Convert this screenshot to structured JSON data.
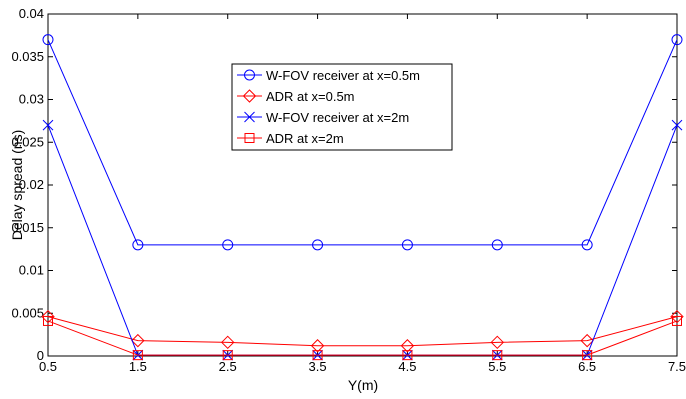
{
  "chart_data": {
    "type": "line",
    "xlabel": "Y(m)",
    "ylabel": "Delay spread (ns)",
    "xlim": [
      0.5,
      7.5
    ],
    "ylim": [
      0,
      0.04
    ],
    "x": [
      0.5,
      1.5,
      2.5,
      3.5,
      4.5,
      5.5,
      6.5,
      7.5
    ],
    "xticks": [
      "0.5",
      "1.5",
      "2.5",
      "3.5",
      "4.5",
      "5.5",
      "6.5",
      "7.5"
    ],
    "yticks": [
      "0",
      "0.005",
      "0.01",
      "0.015",
      "0.02",
      "0.025",
      "0.03",
      "0.035",
      "0.04"
    ],
    "ytick_values": [
      0,
      0.005,
      0.01,
      0.015,
      0.02,
      0.025,
      0.03,
      0.035,
      0.04
    ],
    "grid": false,
    "legend_position": "top-center",
    "series": [
      {
        "name": "W-FOV receiver at x=0.5m",
        "color": "#0000ff",
        "marker": "circle",
        "values": [
          0.037,
          0.013,
          0.013,
          0.013,
          0.013,
          0.013,
          0.013,
          0.037
        ]
      },
      {
        "name": "ADR at x=0.5m",
        "color": "#ff0000",
        "marker": "diamond",
        "values": [
          0.0046,
          0.0018,
          0.0016,
          0.0012,
          0.0012,
          0.0016,
          0.0018,
          0.0046
        ]
      },
      {
        "name": "W-FOV receiver at x=2m",
        "color": "#0000ff",
        "marker": "x",
        "values": [
          0.027,
          0.0001,
          0.0001,
          0.0001,
          0.0001,
          0.0001,
          0.0001,
          0.027
        ]
      },
      {
        "name": "ADR at x=2m",
        "color": "#ff0000",
        "marker": "square",
        "values": [
          0.0041,
          0.0001,
          0.0001,
          0.0001,
          0.0001,
          0.0001,
          0.0001,
          0.0041
        ]
      }
    ]
  }
}
